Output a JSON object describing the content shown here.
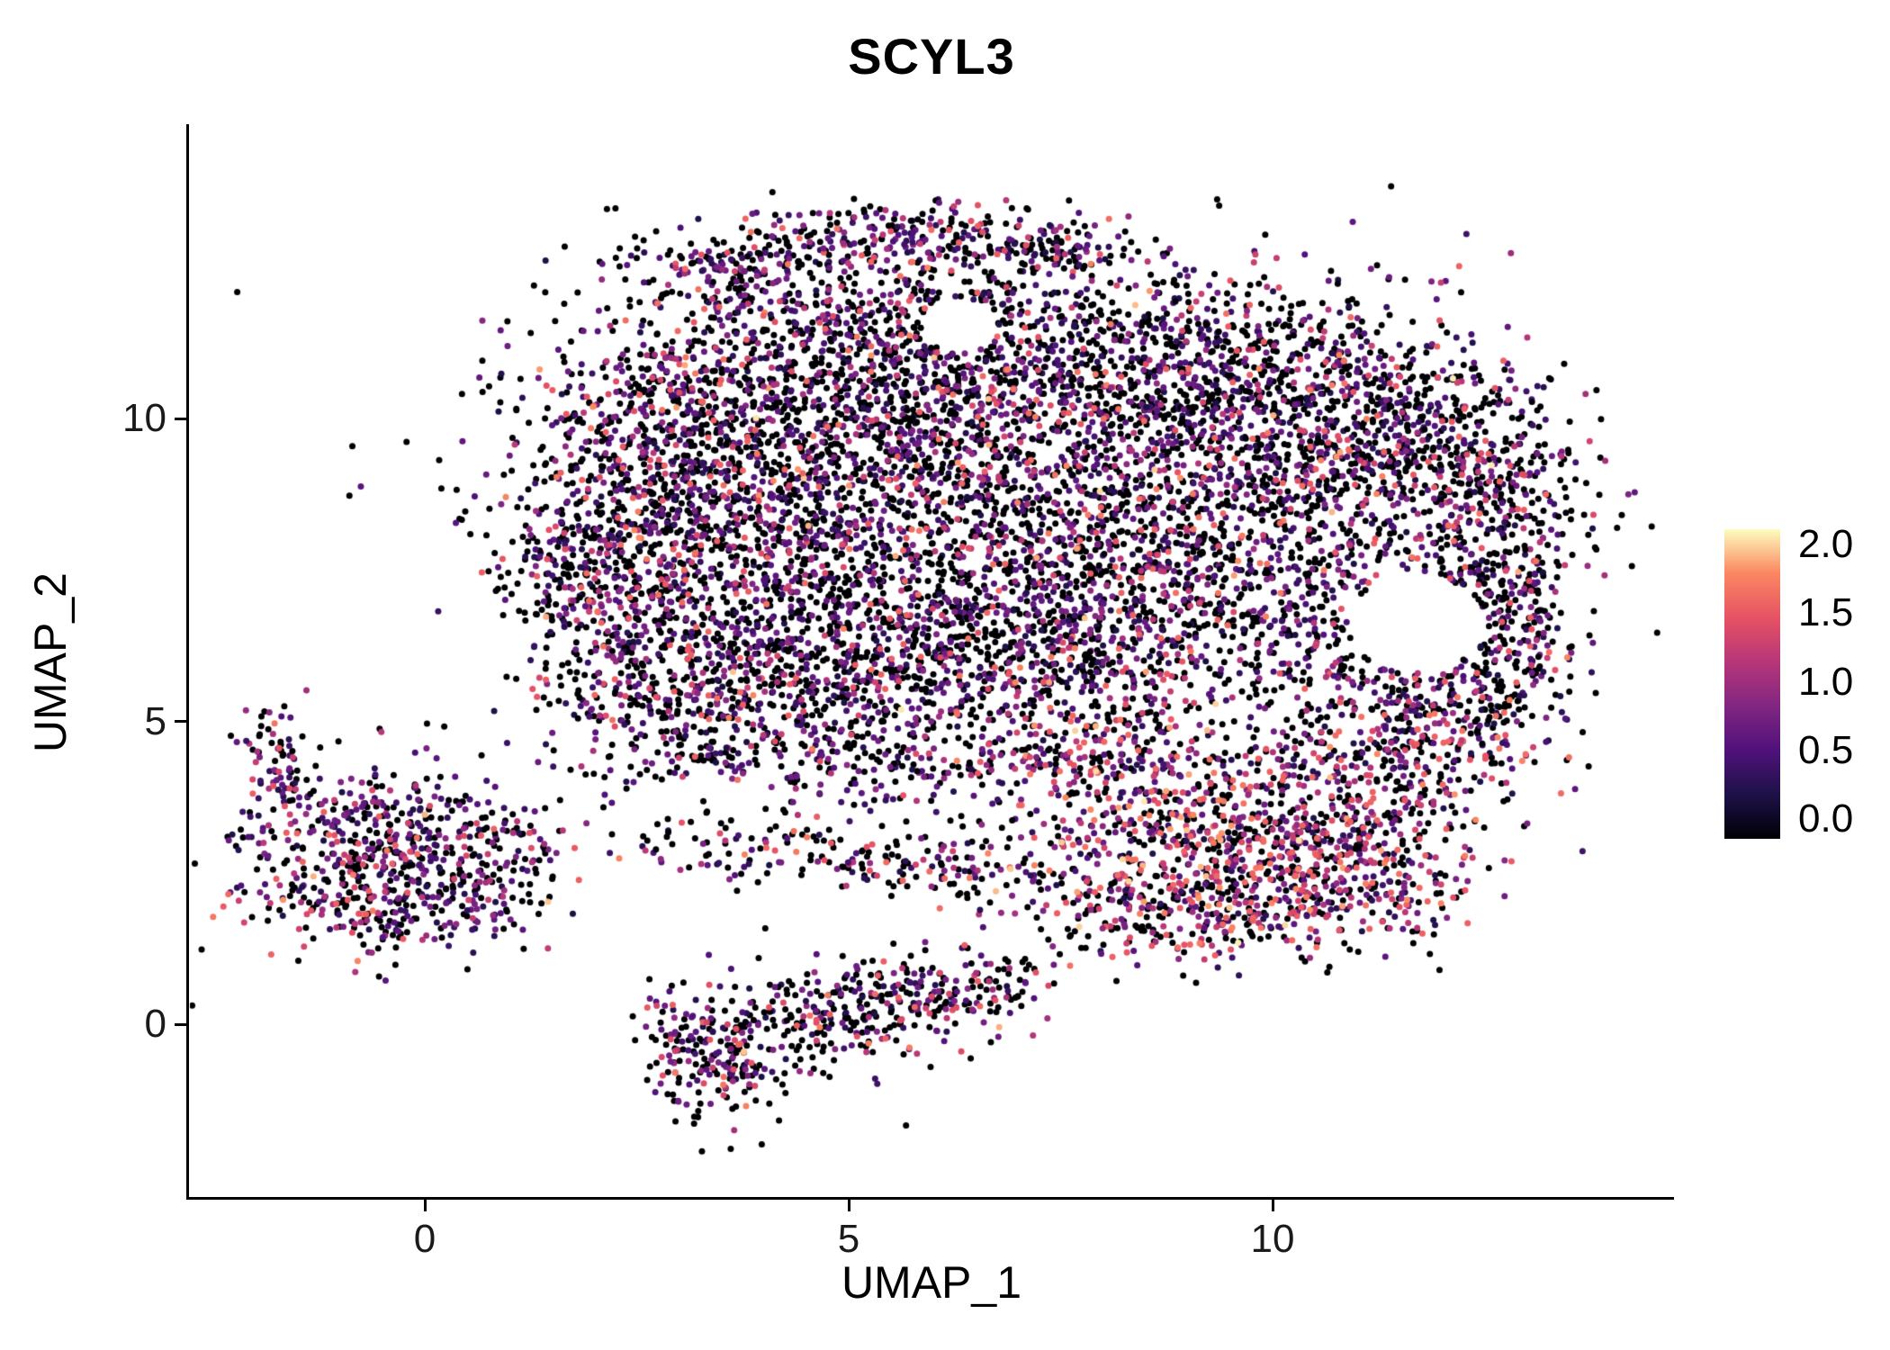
{
  "chart_data": {
    "type": "scatter",
    "title": "SCYL3",
    "xlabel": "UMAP_1",
    "ylabel": "UMAP_2",
    "xlim": [
      -2.8,
      14.7
    ],
    "ylim": [
      -2.9,
      14.8
    ],
    "xticks": [
      0,
      5,
      10
    ],
    "yticks": [
      0,
      5,
      10
    ],
    "grid": false,
    "background": "#ffffff",
    "axis_color": "#000000",
    "legend": {
      "type": "colorbar",
      "position": "right",
      "ticks": [
        "2.0",
        "1.5",
        "1.0",
        "0.5",
        "0.0"
      ],
      "tick_values": [
        2.0,
        1.5,
        1.0,
        0.5,
        0.0
      ],
      "range": [
        0,
        2
      ],
      "colormap": "magma",
      "stops": [
        [
          0.0,
          "#000004"
        ],
        [
          0.14,
          "#1d1147"
        ],
        [
          0.29,
          "#51127c"
        ],
        [
          0.43,
          "#822681"
        ],
        [
          0.57,
          "#b63679"
        ],
        [
          0.71,
          "#e65164"
        ],
        [
          0.86,
          "#fb8861"
        ],
        [
          1.0,
          "#fcfdbf"
        ]
      ]
    },
    "point": {
      "radius_px": 3.5,
      "seed": 7
    },
    "expression_profiles": {
      "main": [
        0.53,
        0.32,
        0.12,
        0.03
      ],
      "arc": [
        0.42,
        0.4,
        0.15,
        0.03
      ],
      "left": [
        0.44,
        0.36,
        0.16,
        0.04
      ],
      "bottom": [
        0.5,
        0.32,
        0.14,
        0.04
      ],
      "warm": [
        0.38,
        0.24,
        0.26,
        0.12
      ]
    },
    "holes": [
      {
        "cx": 11.7,
        "cy": 6.6,
        "r": 0.8
      },
      {
        "cx": 6.3,
        "cy": 11.55,
        "r": 0.45
      }
    ],
    "clusters": [
      {
        "cx": 3.2,
        "cy": 10.2,
        "sx": 1.1,
        "sy": 1.0,
        "n": 520,
        "profile": "main"
      },
      {
        "cx": 5.3,
        "cy": 10.7,
        "sx": 1.2,
        "sy": 0.9,
        "n": 520,
        "profile": "main"
      },
      {
        "cx": 7.6,
        "cy": 11.1,
        "sx": 1.3,
        "sy": 0.8,
        "n": 460,
        "profile": "main"
      },
      {
        "cx": 9.3,
        "cy": 10.7,
        "sx": 1.2,
        "sy": 0.9,
        "n": 460,
        "profile": "main"
      },
      {
        "cx": 11.0,
        "cy": 10.3,
        "sx": 1.0,
        "sy": 0.8,
        "n": 340,
        "profile": "main"
      },
      {
        "cx": 12.2,
        "cy": 9.3,
        "sx": 0.8,
        "sy": 0.9,
        "n": 260,
        "profile": "main"
      },
      {
        "cx": 2.6,
        "cy": 8.6,
        "sx": 0.9,
        "sy": 1.0,
        "n": 420,
        "profile": "main"
      },
      {
        "cx": 4.6,
        "cy": 8.9,
        "sx": 1.2,
        "sy": 1.1,
        "n": 520,
        "profile": "main"
      },
      {
        "cx": 6.8,
        "cy": 9.0,
        "sx": 1.4,
        "sy": 1.1,
        "n": 560,
        "profile": "main"
      },
      {
        "cx": 9.0,
        "cy": 8.8,
        "sx": 1.3,
        "sy": 1.0,
        "n": 520,
        "profile": "main"
      },
      {
        "cx": 10.9,
        "cy": 8.6,
        "sx": 1.0,
        "sy": 0.9,
        "n": 340,
        "profile": "main"
      },
      {
        "cx": 12.6,
        "cy": 7.9,
        "sx": 0.55,
        "sy": 1.1,
        "n": 240,
        "profile": "main"
      },
      {
        "cx": 1.9,
        "cy": 7.3,
        "sx": 0.5,
        "sy": 0.9,
        "n": 220,
        "profile": "main"
      },
      {
        "cx": 3.4,
        "cy": 6.8,
        "sx": 1.0,
        "sy": 0.9,
        "n": 380,
        "profile": "main"
      },
      {
        "cx": 5.5,
        "cy": 6.7,
        "sx": 1.4,
        "sy": 0.9,
        "n": 460,
        "profile": "main"
      },
      {
        "cx": 7.6,
        "cy": 6.8,
        "sx": 1.3,
        "sy": 0.9,
        "n": 430,
        "profile": "main"
      },
      {
        "cx": 9.6,
        "cy": 6.6,
        "sx": 1.1,
        "sy": 0.8,
        "n": 320,
        "profile": "main"
      },
      {
        "cx": 11.3,
        "cy": 6.0,
        "sx": 0.9,
        "sy": 0.8,
        "n": 200,
        "profile": "main"
      },
      {
        "cx": 12.9,
        "cy": 6.6,
        "sx": 0.4,
        "sy": 0.9,
        "n": 170,
        "profile": "main"
      },
      {
        "cx": 4.9,
        "cy": 5.6,
        "sx": 1.2,
        "sy": 0.6,
        "n": 260,
        "profile": "main"
      },
      {
        "cx": 7.0,
        "cy": 5.6,
        "sx": 1.2,
        "sy": 0.6,
        "n": 230,
        "profile": "main"
      },
      {
        "cx": 2.7,
        "cy": 5.5,
        "sx": 0.7,
        "sy": 0.6,
        "n": 180,
        "profile": "main"
      },
      {
        "cx": 3.6,
        "cy": 12.45,
        "sx": 0.7,
        "sy": 0.3,
        "n": 140,
        "profile": "arc"
      },
      {
        "cx": 5.5,
        "cy": 13.0,
        "sx": 1.0,
        "sy": 0.28,
        "n": 220,
        "profile": "arc"
      },
      {
        "cx": 7.3,
        "cy": 12.8,
        "sx": 0.5,
        "sy": 0.25,
        "n": 90,
        "profile": "arc"
      },
      {
        "cx": 5.3,
        "cy": 11.9,
        "sx": 1.2,
        "sy": 0.45,
        "n": 160,
        "profile": "main"
      },
      {
        "cx": 4.0,
        "cy": 4.5,
        "sx": 1.3,
        "sy": 0.35,
        "n": 170,
        "profile": "main"
      },
      {
        "cx": 6.2,
        "cy": 4.3,
        "sx": 1.0,
        "sy": 0.3,
        "n": 120,
        "profile": "main"
      },
      {
        "cx": 4.3,
        "cy": 2.9,
        "sx": 1.5,
        "sy": 0.3,
        "n": 120,
        "profile": "bottom"
      },
      {
        "cx": 6.3,
        "cy": 2.6,
        "sx": 1.2,
        "sy": 0.3,
        "n": 100,
        "profile": "bottom"
      },
      {
        "cx": -0.6,
        "cy": 2.9,
        "sx": 0.85,
        "sy": 0.8,
        "n": 520,
        "profile": "left"
      },
      {
        "cx": -1.75,
        "cy": 4.4,
        "sx": 0.2,
        "sy": 0.45,
        "n": 70,
        "profile": "left"
      },
      {
        "cx": -0.3,
        "cy": 1.85,
        "sx": 0.8,
        "sy": 0.28,
        "n": 100,
        "profile": "left"
      },
      {
        "cx": 0.8,
        "cy": 2.7,
        "sx": 0.45,
        "sy": 0.5,
        "n": 90,
        "profile": "left"
      },
      {
        "cx": 3.4,
        "cy": -0.6,
        "sx": 0.5,
        "sy": 0.5,
        "n": 190,
        "profile": "bottom"
      },
      {
        "cx": 4.6,
        "cy": 0.1,
        "sx": 0.8,
        "sy": 0.45,
        "n": 200,
        "profile": "bottom"
      },
      {
        "cx": 5.8,
        "cy": 0.4,
        "sx": 0.7,
        "sy": 0.4,
        "n": 150,
        "profile": "bottom"
      },
      {
        "cx": 6.6,
        "cy": 0.7,
        "sx": 0.35,
        "sy": 0.3,
        "n": 60,
        "profile": "bottom"
      },
      {
        "cx": 9.0,
        "cy": 3.2,
        "sx": 1.0,
        "sy": 0.7,
        "n": 330,
        "profile": "warm"
      },
      {
        "cx": 10.5,
        "cy": 3.3,
        "sx": 0.9,
        "sy": 0.8,
        "n": 330,
        "profile": "warm"
      },
      {
        "cx": 11.7,
        "cy": 4.3,
        "sx": 0.7,
        "sy": 0.7,
        "n": 230,
        "profile": "warm"
      },
      {
        "cx": 8.3,
        "cy": 2.0,
        "sx": 0.8,
        "sy": 0.5,
        "n": 200,
        "profile": "warm"
      },
      {
        "cx": 9.8,
        "cy": 1.9,
        "sx": 0.8,
        "sy": 0.5,
        "n": 200,
        "profile": "warm"
      },
      {
        "cx": 11.2,
        "cy": 2.3,
        "sx": 0.6,
        "sy": 0.5,
        "n": 130,
        "profile": "warm"
      },
      {
        "cx": 8.3,
        "cy": 4.4,
        "sx": 0.8,
        "sy": 0.5,
        "n": 170,
        "profile": "warm"
      },
      {
        "cx": 12.0,
        "cy": 5.2,
        "sx": 0.6,
        "sy": 0.5,
        "n": 120,
        "profile": "main"
      },
      {
        "cx": 7.0,
        "cy": 8.5,
        "sx": 3.4,
        "sy": 2.4,
        "n": 300,
        "profile": "main"
      },
      {
        "cx": 6.0,
        "cy": 3.4,
        "sx": 2.8,
        "sy": 0.9,
        "n": 90,
        "profile": "bottom"
      }
    ]
  }
}
